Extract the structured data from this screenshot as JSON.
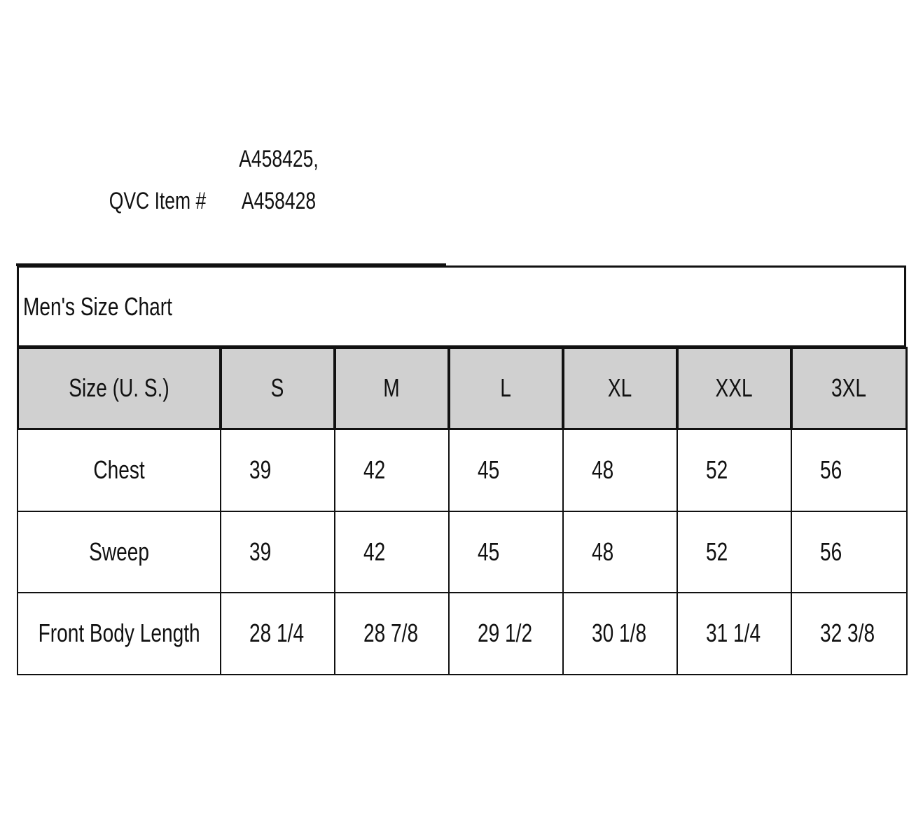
{
  "header": {
    "item_label": "QVC Item #",
    "item_numbers": [
      "A458425,",
      "A458428"
    ]
  },
  "table": {
    "title": "Men's Size Chart",
    "columns": [
      "Size (U. S.)",
      "S",
      "M",
      "L",
      "XL",
      "XXL",
      "3XL"
    ],
    "rows": [
      [
        "Chest",
        "39",
        "42",
        "45",
        "48",
        "52",
        "56"
      ],
      [
        "Sweep",
        "39",
        "42",
        "45",
        "48",
        "52",
        "56"
      ],
      [
        "Front Body Length",
        "28 1/4",
        "28 7/8",
        "29 1/2",
        "30 1/8",
        "31 1/4",
        "32 3/8"
      ]
    ]
  }
}
